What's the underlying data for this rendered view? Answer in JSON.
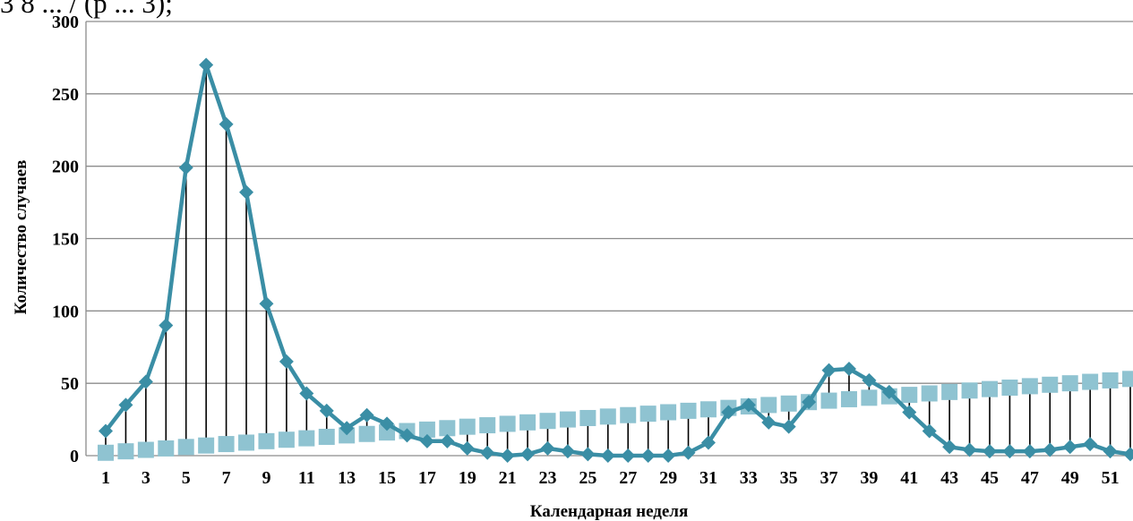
{
  "cut_text": "3 8 ... / (p  ...  3);",
  "chart_data": {
    "type": "line",
    "xlabel": "Календарная неделя",
    "ylabel": "Количество случаев",
    "ylim": [
      0,
      300
    ],
    "yticks": [
      0,
      50,
      100,
      150,
      200,
      250,
      300
    ],
    "x": [
      1,
      2,
      3,
      4,
      5,
      6,
      7,
      8,
      9,
      10,
      11,
      12,
      13,
      14,
      15,
      16,
      17,
      18,
      19,
      20,
      21,
      22,
      23,
      24,
      25,
      26,
      27,
      28,
      29,
      30,
      31,
      32,
      33,
      34,
      35,
      36,
      37,
      38,
      39,
      40,
      41,
      42,
      43,
      44,
      45,
      46,
      47,
      48,
      49,
      50,
      51,
      52
    ],
    "xtick_labels": [
      "1",
      "3",
      "5",
      "7",
      "9",
      "11",
      "13",
      "15",
      "17",
      "19",
      "21",
      "23",
      "25",
      "27",
      "29",
      "31",
      "33",
      "35",
      "37",
      "39",
      "41",
      "43",
      "45",
      "47",
      "49",
      "51"
    ],
    "grid": true,
    "drop_lines": true,
    "series": [
      {
        "color": "#3a8ea5",
        "marker": "diamond",
        "values": [
          17,
          35,
          51,
          90,
          199,
          270,
          229,
          182,
          105,
          65,
          43,
          31,
          19,
          28,
          22,
          14,
          10,
          10,
          5,
          2,
          0,
          1,
          5,
          3,
          1,
          0,
          0,
          0,
          0,
          2,
          9,
          30,
          35,
          23,
          20,
          37,
          59,
          60,
          52,
          44,
          30,
          17,
          6,
          4,
          3,
          3,
          3,
          4,
          6,
          8,
          3,
          1
        ]
      },
      {
        "color": "#8fc3d1",
        "marker": "square",
        "values": [
          2,
          3,
          4,
          5,
          6,
          7,
          8,
          9,
          10,
          11,
          12,
          13,
          14,
          15,
          16,
          17,
          18,
          19,
          20,
          21,
          22,
          23,
          24,
          25,
          26,
          27,
          28,
          29,
          30,
          31,
          32,
          33,
          34,
          35,
          36,
          37,
          38,
          39,
          40,
          41,
          42,
          43,
          44,
          45,
          46,
          47,
          48,
          49,
          50,
          51,
          52,
          53
        ]
      }
    ]
  }
}
